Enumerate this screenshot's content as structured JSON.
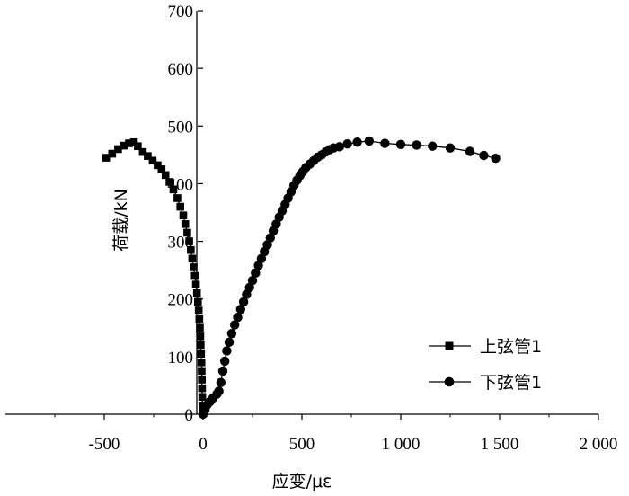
{
  "chart_data": {
    "type": "scatter",
    "title": "",
    "xlabel": "应变/με",
    "ylabel": "荷载/kN",
    "xlim": [
      -1000,
      2000
    ],
    "ylim": [
      0,
      700
    ],
    "x_ticks": [
      -500,
      0,
      500,
      1000,
      1500,
      2000
    ],
    "x_tick_labels": [
      "-500",
      "0",
      "500",
      "1 000",
      "1 500",
      "2 000"
    ],
    "y_ticks": [
      0,
      100,
      200,
      300,
      400,
      500,
      600,
      700
    ],
    "y_tick_labels": [
      "0",
      "100",
      "200",
      "300",
      "400",
      "500",
      "600",
      "700"
    ],
    "grid": false,
    "legend_position": "bottom-right",
    "series": [
      {
        "name": "上弦管1",
        "marker": "square",
        "color": "#000000",
        "points": [
          [
            -490,
            445
          ],
          [
            -460,
            452
          ],
          [
            -430,
            460
          ],
          [
            -400,
            466
          ],
          [
            -375,
            470
          ],
          [
            -350,
            472
          ],
          [
            -330,
            465
          ],
          [
            -305,
            455
          ],
          [
            -280,
            448
          ],
          [
            -255,
            440
          ],
          [
            -230,
            432
          ],
          [
            -210,
            425
          ],
          [
            -190,
            415
          ],
          [
            -170,
            403
          ],
          [
            -150,
            390
          ],
          [
            -130,
            375
          ],
          [
            -115,
            360
          ],
          [
            -100,
            345
          ],
          [
            -90,
            330
          ],
          [
            -80,
            315
          ],
          [
            -70,
            300
          ],
          [
            -62,
            285
          ],
          [
            -55,
            270
          ],
          [
            -48,
            255
          ],
          [
            -42,
            240
          ],
          [
            -36,
            225
          ],
          [
            -31,
            210
          ],
          [
            -26,
            195
          ],
          [
            -22,
            180
          ],
          [
            -19,
            165
          ],
          [
            -16,
            150
          ],
          [
            -14,
            135
          ],
          [
            -12,
            120
          ],
          [
            -10,
            105
          ],
          [
            -8,
            90
          ],
          [
            -7,
            75
          ],
          [
            -6,
            60
          ],
          [
            -5,
            45
          ],
          [
            -4,
            30
          ],
          [
            -3,
            15
          ],
          [
            0,
            2
          ]
        ]
      },
      {
        "name": "下弦管1",
        "marker": "circle",
        "color": "#000000",
        "points": [
          [
            0,
            0
          ],
          [
            10,
            8
          ],
          [
            20,
            16
          ],
          [
            35,
            22
          ],
          [
            50,
            28
          ],
          [
            70,
            35
          ],
          [
            80,
            40
          ],
          [
            90,
            55
          ],
          [
            100,
            75
          ],
          [
            110,
            92
          ],
          [
            120,
            110
          ],
          [
            132,
            125
          ],
          [
            145,
            140
          ],
          [
            160,
            155
          ],
          [
            175,
            168
          ],
          [
            190,
            182
          ],
          [
            205,
            195
          ],
          [
            220,
            208
          ],
          [
            235,
            220
          ],
          [
            250,
            232
          ],
          [
            265,
            245
          ],
          [
            280,
            258
          ],
          [
            295,
            270
          ],
          [
            310,
            282
          ],
          [
            325,
            294
          ],
          [
            340,
            306
          ],
          [
            355,
            318
          ],
          [
            370,
            330
          ],
          [
            385,
            342
          ],
          [
            400,
            353
          ],
          [
            415,
            364
          ],
          [
            430,
            375
          ],
          [
            445,
            386
          ],
          [
            460,
            397
          ],
          [
            475,
            406
          ],
          [
            490,
            414
          ],
          [
            505,
            421
          ],
          [
            520,
            428
          ],
          [
            540,
            434
          ],
          [
            560,
            440
          ],
          [
            580,
            446
          ],
          [
            600,
            450
          ],
          [
            620,
            455
          ],
          [
            640,
            459
          ],
          [
            660,
            462
          ],
          [
            690,
            464
          ],
          [
            730,
            469
          ],
          [
            780,
            472
          ],
          [
            840,
            474
          ],
          [
            920,
            470
          ],
          [
            1000,
            468
          ],
          [
            1080,
            467
          ],
          [
            1160,
            465
          ],
          [
            1250,
            462
          ],
          [
            1350,
            456
          ],
          [
            1420,
            449
          ],
          [
            1480,
            444
          ]
        ]
      }
    ]
  }
}
